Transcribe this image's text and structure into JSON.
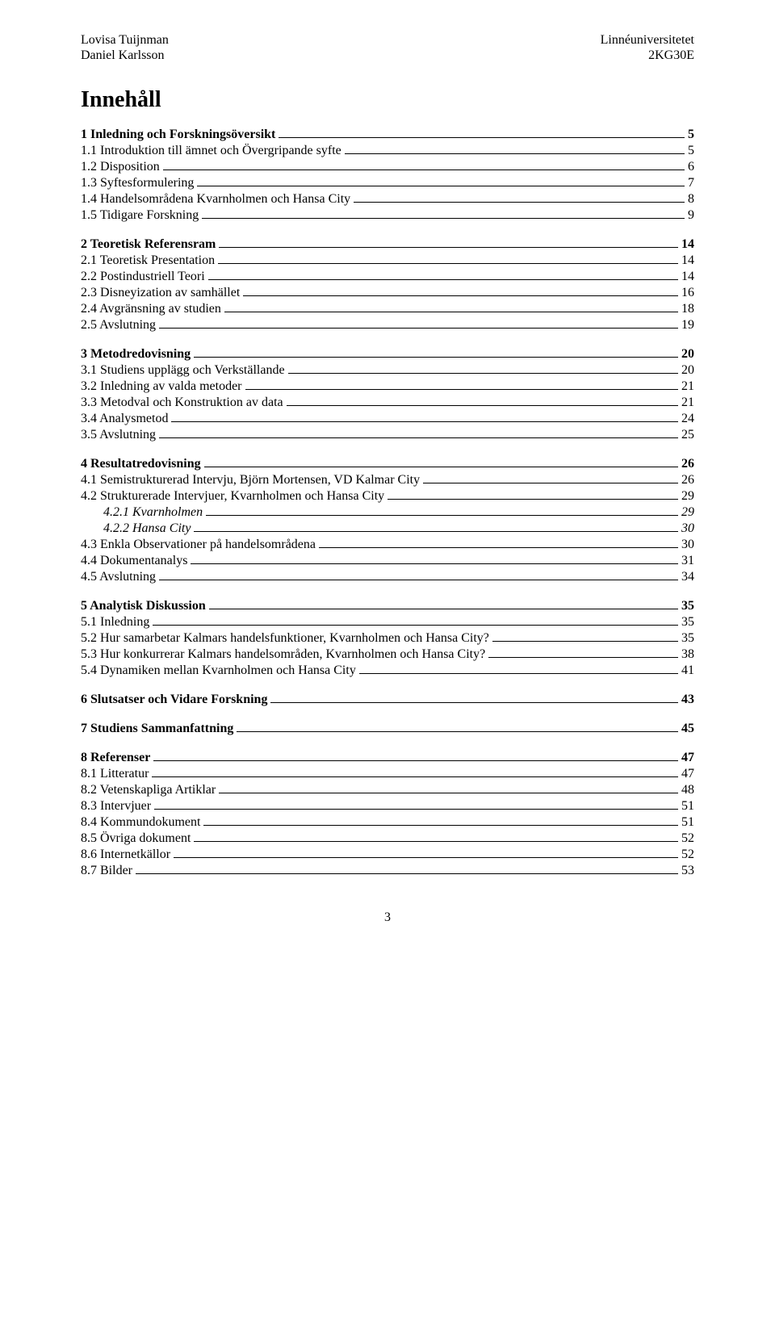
{
  "header": {
    "left_line1": "Lovisa Tuijnman",
    "left_line2": "Daniel Karlsson",
    "right_line1": "Linnéuniversitetet",
    "right_line2": "2KG30E"
  },
  "main_heading": "Innehåll",
  "toc": [
    {
      "label": "1 Inledning och Forskningsöversikt",
      "page": "5",
      "level": 1
    },
    {
      "label": "1.1 Introduktion till ämnet och Övergripande syfte",
      "page": "5",
      "level": 2
    },
    {
      "label": "1.2 Disposition",
      "page": "6",
      "level": 2
    },
    {
      "label": "1.3 Syftesformulering",
      "page": "7",
      "level": 2
    },
    {
      "label": "1.4 Handelsområdena Kvarnholmen och Hansa City",
      "page": "8",
      "level": 2
    },
    {
      "label": "1.5 Tidigare Forskning",
      "page": "9",
      "level": 2
    },
    {
      "label": "2 Teoretisk Referensram",
      "page": "14",
      "level": 1
    },
    {
      "label": "2.1 Teoretisk Presentation",
      "page": "14",
      "level": 2
    },
    {
      "label": "2.2 Postindustriell Teori",
      "page": "14",
      "level": 2
    },
    {
      "label": "2.3 Disneyization av samhället",
      "page": "16",
      "level": 2
    },
    {
      "label": "2.4 Avgränsning av studien",
      "page": "18",
      "level": 2
    },
    {
      "label": "2.5 Avslutning",
      "page": "19",
      "level": 2
    },
    {
      "label": "3 Metodredovisning",
      "page": "20",
      "level": 1
    },
    {
      "label": "3.1 Studiens upplägg och Verkställande",
      "page": "20",
      "level": 2
    },
    {
      "label": "3.2 Inledning av valda metoder",
      "page": "21",
      "level": 2
    },
    {
      "label": "3.3 Metodval och Konstruktion av data",
      "page": "21",
      "level": 2
    },
    {
      "label": "3.4 Analysmetod",
      "page": "24",
      "level": 2
    },
    {
      "label": "3.5 Avslutning",
      "page": "25",
      "level": 2
    },
    {
      "label": "4 Resultatredovisning",
      "page": "26",
      "level": 1
    },
    {
      "label": "4.1 Semistrukturerad Intervju, Björn Mortensen, VD Kalmar City",
      "page": "26",
      "level": 2
    },
    {
      "label": "4.2 Strukturerade Intervjuer, Kvarnholmen och Hansa City",
      "page": "29",
      "level": 2
    },
    {
      "label": "4.2.1 Kvarnholmen",
      "page": "29",
      "level": 3
    },
    {
      "label": "4.2.2 Hansa City",
      "page": "30",
      "level": 3
    },
    {
      "label": "4.3 Enkla Observationer på handelsområdena",
      "page": "30",
      "level": 2
    },
    {
      "label": "4.4 Dokumentanalys",
      "page": "31",
      "level": 2
    },
    {
      "label": "4.5 Avslutning",
      "page": "34",
      "level": 2
    },
    {
      "label": "5 Analytisk Diskussion",
      "page": "35",
      "level": 1
    },
    {
      "label": "5.1 Inledning",
      "page": "35",
      "level": 2
    },
    {
      "label": "5.2 Hur samarbetar Kalmars handelsfunktioner, Kvarnholmen och Hansa City?",
      "page": "35",
      "level": 2
    },
    {
      "label": "5.3 Hur konkurrerar Kalmars handelsområden, Kvarnholmen och Hansa City?",
      "page": "38",
      "level": 2
    },
    {
      "label": "5.4 Dynamiken mellan Kvarnholmen och Hansa City",
      "page": "41",
      "level": 2
    },
    {
      "label": "6 Slutsatser och Vidare Forskning",
      "page": "43",
      "level": 1
    },
    {
      "label": "7 Studiens Sammanfattning",
      "page": "45",
      "level": 1
    },
    {
      "label": "8 Referenser",
      "page": "47",
      "level": 1
    },
    {
      "label": "8.1 Litteratur",
      "page": "47",
      "level": 2
    },
    {
      "label": "8.2 Vetenskapliga Artiklar",
      "page": "48",
      "level": 2
    },
    {
      "label": "8.3 Intervjuer",
      "page": "51",
      "level": 2
    },
    {
      "label": "8.4 Kommundokument",
      "page": "51",
      "level": 2
    },
    {
      "label": "8.5 Övriga dokument",
      "page": "52",
      "level": 2
    },
    {
      "label": "8.6 Internetkällor",
      "page": "52",
      "level": 2
    },
    {
      "label": "8.7 Bilder",
      "page": "53",
      "level": 2
    }
  ],
  "footer_page_number": "3"
}
